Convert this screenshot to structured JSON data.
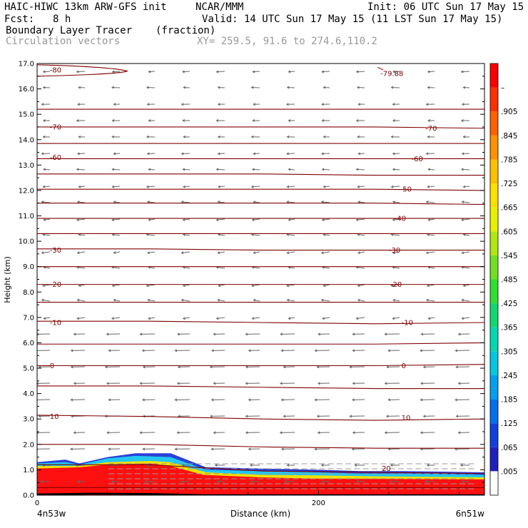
{
  "header": {
    "title": "HAIC-HIWC 13km ARW-GFS init",
    "org": "NCAR/MMM",
    "init": "Init: 06 UTC Sun 17 May 15",
    "fcst_label": "Fcst:",
    "fcst_value": "8 h",
    "valid": "Valid: 14 UTC Sun 17 May 15 (11 LST Sun 17 May 15)",
    "field_name": "Boundary Layer Tracer",
    "field_units": "(fraction)",
    "vector_label": "Circulation vectors",
    "xy_label": "XY= 259.5, 91.6 to 274.6,110.2"
  },
  "chart_data": {
    "type": "cross-section",
    "ylabel": "Height (km)",
    "xlabel": "Distance (km)",
    "x_left_label": "4n53w",
    "x_right_label": "6n51w",
    "xlim": [
      0,
      318
    ],
    "ylim": [
      0,
      17
    ],
    "x_ticks": [
      {
        "value": 0,
        "label": "0"
      },
      {
        "value": 200,
        "label": "200"
      }
    ],
    "y_ticks": [
      {
        "value": 0,
        "label": "0.0"
      },
      {
        "value": 1,
        "label": "1.0"
      },
      {
        "value": 2,
        "label": "2.0"
      },
      {
        "value": 3,
        "label": "3.0"
      },
      {
        "value": 4,
        "label": "4.0"
      },
      {
        "value": 5,
        "label": "5.0"
      },
      {
        "value": 6,
        "label": "6.0"
      },
      {
        "value": 7,
        "label": "7.0"
      },
      {
        "value": 8,
        "label": "8.0"
      },
      {
        "value": 9,
        "label": "9.0"
      },
      {
        "value": 10,
        "label": "10.0"
      },
      {
        "value": 11,
        "label": "11.0"
      },
      {
        "value": 12,
        "label": "12.0"
      },
      {
        "value": 13,
        "label": "13.0"
      },
      {
        "value": 14,
        "label": "14.0"
      },
      {
        "value": 15,
        "label": "15.0"
      },
      {
        "value": 16,
        "label": "16.0"
      },
      {
        "value": 17,
        "label": "17.0"
      }
    ],
    "colorbar_labels": [
      ".005",
      ".065",
      ".125",
      ".185",
      ".245",
      ".305",
      ".365",
      ".425",
      ".485",
      ".545",
      ".605",
      ".665",
      ".725",
      ".785",
      ".845",
      ".905",
      "–"
    ],
    "colorbar_colors": [
      "#ffffff",
      "#2020c0",
      "#1040e0",
      "#0070f0",
      "#00a0f0",
      "#00c8e0",
      "#00d8b0",
      "#10d870",
      "#30e030",
      "#70e020",
      "#b0e810",
      "#e8f000",
      "#ffe000",
      "#ffc000",
      "#ff9000",
      "#ff6000",
      "#ff3000",
      "#ff0000"
    ],
    "contour_labels": [
      {
        "text": "-80",
        "x": 9,
        "y": 16.75
      },
      {
        "text": "-79.88",
        "x": 244,
        "y": 16.6
      },
      {
        "text": "-70",
        "x": 9,
        "y": 14.5
      },
      {
        "text": "-70",
        "x": 276,
        "y": 14.45
      },
      {
        "text": "-60",
        "x": 9,
        "y": 13.3
      },
      {
        "text": "-60",
        "x": 266,
        "y": 13.25
      },
      {
        "text": "-50",
        "x": 258,
        "y": 12.05
      },
      {
        "text": "-40",
        "x": 254,
        "y": 10.9
      },
      {
        "text": "-30",
        "x": 9,
        "y": 9.65
      },
      {
        "text": "-30",
        "x": 250,
        "y": 9.65
      },
      {
        "text": "-20",
        "x": 9,
        "y": 8.3
      },
      {
        "text": "-20",
        "x": 251,
        "y": 8.3
      },
      {
        "text": "-10",
        "x": 9,
        "y": 6.8
      },
      {
        "text": "-10",
        "x": 259,
        "y": 6.8
      },
      {
        "text": "0",
        "x": 9,
        "y": 5.1
      },
      {
        "text": "0",
        "x": 259,
        "y": 5.1
      },
      {
        "text": "10",
        "x": 9,
        "y": 3.1
      },
      {
        "text": "10",
        "x": 259,
        "y": 3.05
      },
      {
        "text": "20",
        "x": 245,
        "y": 1.05
      }
    ],
    "contours": [
      {
        "y": [
          0.3,
          0.3,
          0.3,
          0.3,
          0.3
        ]
      },
      {
        "y": [
          1.2,
          1.2,
          0.95,
          0.9,
          0.85
        ]
      },
      {
        "y": [
          2.0,
          2.0,
          1.9,
          1.85,
          1.85
        ]
      },
      {
        "y": [
          3.15,
          3.1,
          3.0,
          2.95,
          3.0
        ]
      },
      {
        "y": [
          4.3,
          4.3,
          4.25,
          4.2,
          4.2
        ]
      },
      {
        "y": [
          5.1,
          5.1,
          5.1,
          5.1,
          5.15
        ]
      },
      {
        "y": [
          5.95,
          5.95,
          5.95,
          5.95,
          6.0
        ]
      },
      {
        "y": [
          6.85,
          6.85,
          6.8,
          6.75,
          6.8
        ]
      },
      {
        "y": [
          7.6,
          7.6,
          7.6,
          7.6,
          7.6
        ]
      },
      {
        "y": [
          8.3,
          8.3,
          8.3,
          8.3,
          8.3
        ]
      },
      {
        "y": [
          9.0,
          9.0,
          9.0,
          9.0,
          9.0
        ]
      },
      {
        "y": [
          9.7,
          9.7,
          9.65,
          9.65,
          9.65
        ]
      },
      {
        "y": [
          10.3,
          10.3,
          10.3,
          10.3,
          10.3
        ]
      },
      {
        "y": [
          10.9,
          10.9,
          10.9,
          10.9,
          10.9
        ]
      },
      {
        "y": [
          11.5,
          11.5,
          11.5,
          11.5,
          11.45
        ]
      },
      {
        "y": [
          12.05,
          12.05,
          12.05,
          12.05,
          12.0
        ]
      },
      {
        "y": [
          12.65,
          12.65,
          12.65,
          12.6,
          12.6
        ]
      },
      {
        "y": [
          13.25,
          13.25,
          13.25,
          13.25,
          13.25
        ]
      },
      {
        "y": [
          13.85,
          13.85,
          13.85,
          13.85,
          13.85
        ]
      },
      {
        "y": [
          14.5,
          14.5,
          14.5,
          14.5,
          14.45
        ]
      },
      {
        "y": [
          15.2,
          15.2,
          15.2,
          15.2,
          15.2
        ]
      }
    ],
    "contour_x": [
      0,
      80,
      160,
      240,
      318
    ],
    "tracer_envelope": [
      {
        "layer": 0,
        "pts": [
          [
            0,
            1.3
          ],
          [
            10,
            1.35
          ],
          [
            20,
            1.4
          ],
          [
            30,
            1.25
          ],
          [
            50,
            1.5
          ],
          [
            70,
            1.65
          ],
          [
            95,
            1.65
          ],
          [
            120,
            1.1
          ],
          [
            160,
            1.05
          ],
          [
            200,
            1.0
          ],
          [
            230,
            0.95
          ],
          [
            260,
            0.95
          ],
          [
            318,
            0.9
          ]
        ]
      },
      {
        "layer": 1,
        "pts": [
          [
            0,
            1.25
          ],
          [
            20,
            1.3
          ],
          [
            30,
            1.2
          ],
          [
            50,
            1.45
          ],
          [
            70,
            1.55
          ],
          [
            95,
            1.5
          ],
          [
            120,
            1.0
          ],
          [
            160,
            0.95
          ],
          [
            200,
            0.9
          ],
          [
            230,
            0.85
          ],
          [
            260,
            0.85
          ],
          [
            318,
            0.8
          ]
        ]
      },
      {
        "layer": 2,
        "pts": [
          [
            0,
            1.15
          ],
          [
            30,
            1.15
          ],
          [
            50,
            1.3
          ],
          [
            80,
            1.35
          ],
          [
            95,
            1.3
          ],
          [
            120,
            0.9
          ],
          [
            160,
            0.8
          ],
          [
            200,
            0.78
          ],
          [
            230,
            0.75
          ],
          [
            318,
            0.7
          ]
        ]
      },
      {
        "layer": 3,
        "pts": [
          [
            0,
            1.05
          ],
          [
            30,
            1.1
          ],
          [
            50,
            1.2
          ],
          [
            80,
            1.25
          ],
          [
            95,
            1.15
          ],
          [
            118,
            0.8
          ],
          [
            160,
            0.7
          ],
          [
            200,
            0.65
          ],
          [
            318,
            0.62
          ]
        ]
      }
    ],
    "surface_low": {
      "pts": [
        [
          0,
          0.03
        ],
        [
          40,
          0.06
        ],
        [
          80,
          0.05
        ],
        [
          120,
          0.0
        ],
        [
          160,
          0.0
        ],
        [
          318,
          0.0
        ]
      ]
    }
  }
}
